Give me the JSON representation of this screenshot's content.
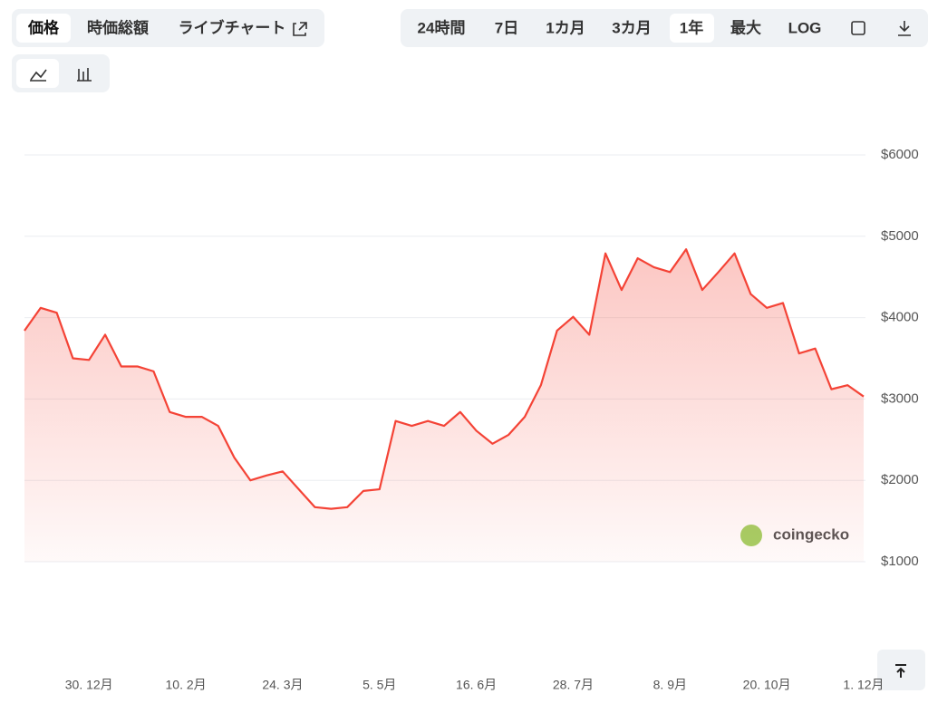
{
  "ui": {
    "tabs_left": [
      "価格",
      "時価総額",
      "ライブチャート"
    ],
    "tabs_right": [
      "24時間",
      "7日",
      "1カ月",
      "3カ月",
      "1年",
      "最大",
      "LOG"
    ],
    "watermark": "coingecko"
  },
  "chart_data": {
    "type": "area",
    "color": "#f44336",
    "categories": [
      null,
      null,
      null,
      null,
      "30. 12月",
      null,
      null,
      null,
      null,
      null,
      "10. 2月",
      null,
      null,
      null,
      null,
      null,
      "24. 3月",
      null,
      null,
      null,
      null,
      null,
      "5. 5月",
      null,
      null,
      null,
      null,
      null,
      "16. 6月",
      null,
      null,
      null,
      null,
      null,
      "28. 7月",
      null,
      null,
      null,
      null,
      null,
      "8. 9月",
      null,
      null,
      null,
      null,
      null,
      "20. 10月",
      null,
      null,
      null,
      null,
      null,
      "1. 12月"
    ],
    "values": [
      3840,
      4120,
      4060,
      3500,
      3480,
      3790,
      3400,
      3400,
      3340,
      2840,
      2780,
      2780,
      2670,
      2280,
      2000,
      2060,
      2110,
      1890,
      1670,
      1650,
      1670,
      1870,
      1890,
      2730,
      2670,
      2730,
      2670,
      2840,
      2610,
      2450,
      2560,
      2780,
      3170,
      3840,
      4010,
      3790,
      4790,
      4340,
      4730,
      4620,
      4560,
      4840,
      4340,
      4560,
      4790,
      4290,
      4120,
      4180,
      3560,
      3620,
      3120,
      3170,
      3030
    ],
    "ylim": [
      1000,
      6000
    ],
    "yticks": [
      {
        "value": 1000,
        "label": "$1000"
      },
      {
        "value": 2000,
        "label": "$2000"
      },
      {
        "value": 3000,
        "label": "$3000"
      },
      {
        "value": 4000,
        "label": "$4000"
      },
      {
        "value": 5000,
        "label": "$5000"
      },
      {
        "value": 6000,
        "label": "$6000"
      }
    ],
    "grid": true
  }
}
